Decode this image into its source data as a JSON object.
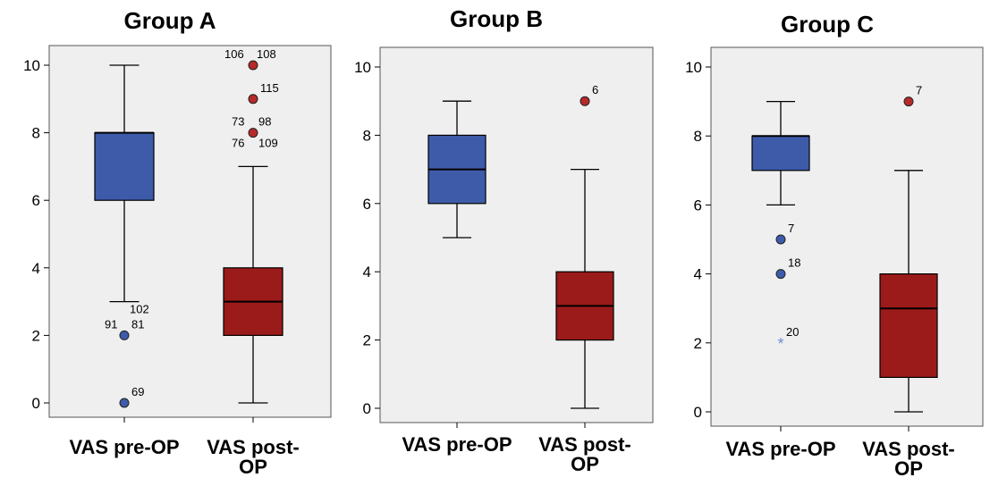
{
  "colors": {
    "pre_box": "#3d5ba9",
    "post_box": "#9b1b1b",
    "outlier_pre": "#3d5ba9",
    "outlier_post": "#b52a2a",
    "extreme_star": "#6f8cd6",
    "plot_bg": "#efefef"
  },
  "chart_data": [
    {
      "type": "boxplot",
      "title": "Group A",
      "xlabel": "",
      "ylabel": "",
      "ylim": [
        0,
        10
      ],
      "yticks": [
        "0",
        "2",
        "4",
        "6",
        "8",
        "10"
      ],
      "categories": [
        "VAS pre-OP",
        "VAS post-OP"
      ],
      "boxes": [
        {
          "category": "VAS pre-OP",
          "min": 3,
          "q1": 6,
          "median": 8,
          "q3": 8,
          "max": 10
        },
        {
          "category": "VAS post-OP",
          "min": 0,
          "q1": 2,
          "median": 3,
          "q3": 4,
          "max": 7
        }
      ],
      "outliers": [
        {
          "category": "VAS pre-OP",
          "y": 2,
          "labels": [
            "91",
            "81"
          ]
        },
        {
          "category": "VAS pre-OP",
          "y": 0,
          "labels": [
            "69"
          ]
        },
        {
          "category": "VAS post-OP",
          "y": 10,
          "labels": [
            "106",
            "108"
          ]
        },
        {
          "category": "VAS post-OP",
          "y": 9,
          "labels": [
            "115"
          ]
        },
        {
          "category": "VAS post-OP",
          "y": 8,
          "labels": [
            "73",
            "98",
            "76",
            "109"
          ]
        }
      ],
      "annotations": [
        {
          "category": "VAS pre-OP",
          "y": 3,
          "text": "102"
        }
      ]
    },
    {
      "type": "boxplot",
      "title": "Group B",
      "xlabel": "",
      "ylabel": "",
      "ylim": [
        0,
        10
      ],
      "yticks": [
        "0",
        "2",
        "4",
        "6",
        "8",
        "10"
      ],
      "categories": [
        "VAS pre-OP",
        "VAS post-OP"
      ],
      "boxes": [
        {
          "category": "VAS pre-OP",
          "min": 5,
          "q1": 6,
          "median": 7,
          "q3": 8,
          "max": 9
        },
        {
          "category": "VAS post-OP",
          "min": 0,
          "q1": 2,
          "median": 3,
          "q3": 4,
          "max": 7
        }
      ],
      "outliers": [
        {
          "category": "VAS post-OP",
          "y": 9,
          "labels": [
            "6"
          ]
        }
      ],
      "annotations": []
    },
    {
      "type": "boxplot",
      "title": "Group C",
      "xlabel": "",
      "ylabel": "",
      "ylim": [
        0,
        10
      ],
      "yticks": [
        "0",
        "2",
        "4",
        "6",
        "8",
        "10"
      ],
      "categories": [
        "VAS pre-OP",
        "VAS post-OP"
      ],
      "boxes": [
        {
          "category": "VAS pre-OP",
          "min": 6,
          "q1": 7,
          "median": 8,
          "q3": 8,
          "max": 9
        },
        {
          "category": "VAS post-OP",
          "min": 0,
          "q1": 1,
          "median": 3,
          "q3": 4,
          "max": 7
        }
      ],
      "outliers": [
        {
          "category": "VAS pre-OP",
          "y": 5,
          "labels": [
            "7"
          ]
        },
        {
          "category": "VAS pre-OP",
          "y": 4,
          "labels": [
            "18"
          ]
        },
        {
          "category": "VAS pre-OP",
          "y": 2,
          "labels": [
            "20"
          ],
          "marker": "star"
        },
        {
          "category": "VAS post-OP",
          "y": 9,
          "labels": [
            "7"
          ]
        }
      ],
      "annotations": []
    }
  ]
}
